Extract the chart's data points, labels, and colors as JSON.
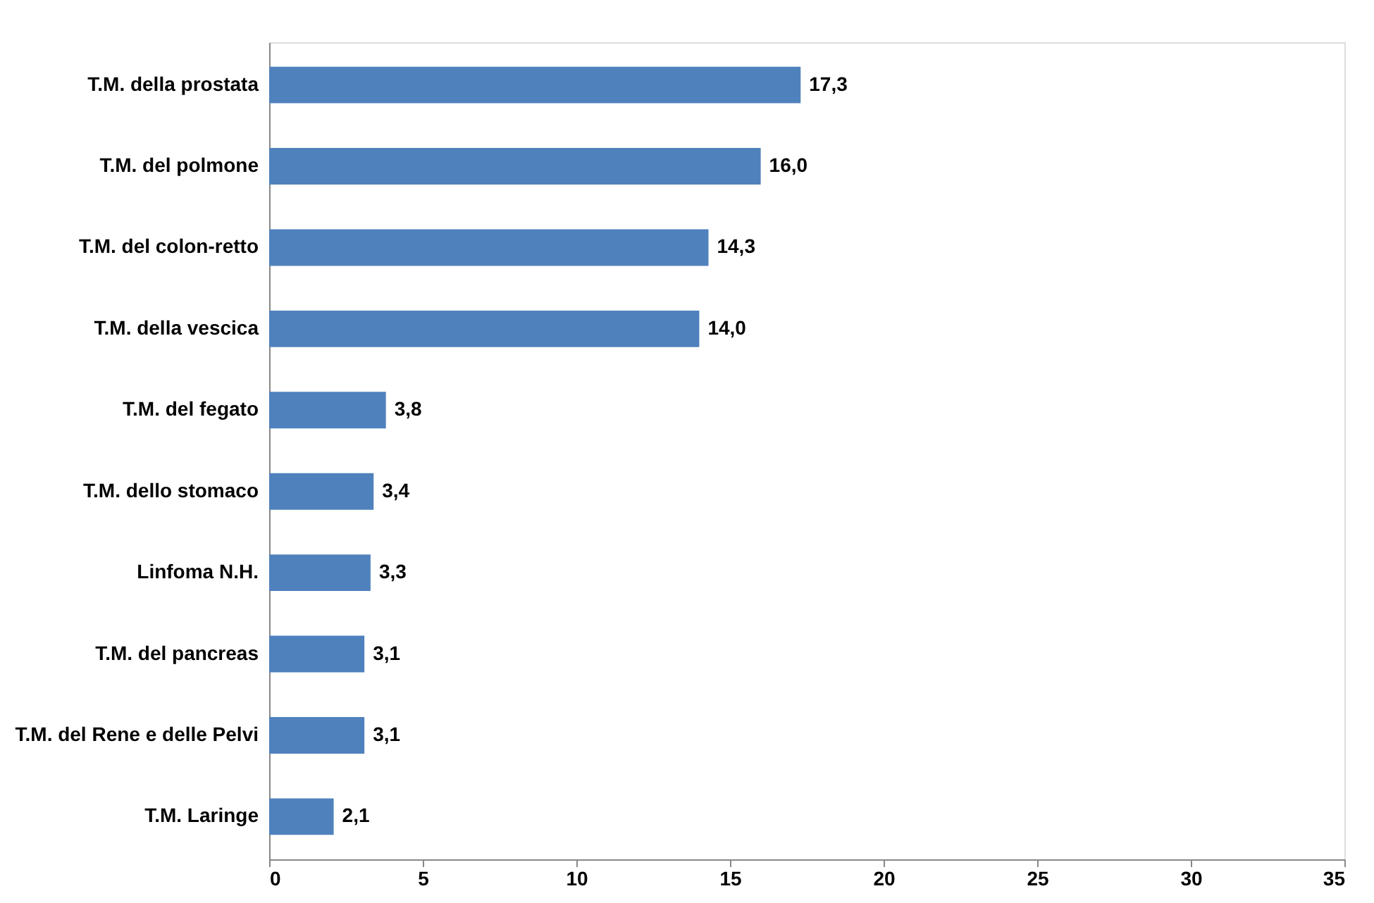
{
  "chart_data": {
    "type": "bar",
    "orientation": "horizontal",
    "categories": [
      "T.M. della prostata",
      "T.M. del polmone",
      "T.M. del colon-retto",
      "T.M. della vescica",
      "T.M. del fegato",
      "T.M. dello stomaco",
      "Linfoma N.H.",
      "T.M. del pancreas",
      "T.M. del Rene e delle Pelvi",
      "T.M. Laringe"
    ],
    "values": [
      17.3,
      16.0,
      14.3,
      14.0,
      3.8,
      3.4,
      3.3,
      3.1,
      3.1,
      2.1
    ],
    "value_labels": [
      "17,3",
      "16,0",
      "14,3",
      "14,0",
      "3,8",
      "3,4",
      "3,3",
      "3,1",
      "3,1",
      "2,1"
    ],
    "color": "#4f81bd",
    "xlim": [
      0,
      35
    ],
    "xticks": [
      0,
      5,
      10,
      15,
      20,
      25,
      30,
      35
    ]
  }
}
